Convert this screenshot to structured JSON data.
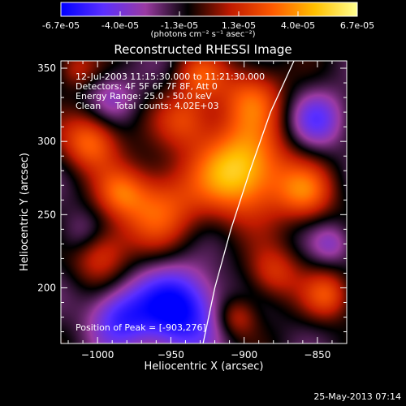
{
  "colorbar": {
    "tick_labels": [
      "-6.7e-05",
      "-4.0e-05",
      "-1.3e-05",
      "1.3e-05",
      "4.0e-05",
      "6.7e-05"
    ],
    "units_text": "(photons cm⁻² s⁻¹ asec⁻²)",
    "range": [
      -6.7e-05,
      6.7e-05
    ],
    "colors": [
      "#0000ff",
      "#5b2fff",
      "#9a3aa2",
      "#000000",
      "#c01a00",
      "#ff5a00",
      "#ffc000",
      "#ffff90"
    ]
  },
  "timestamp": "25-May-2013 07:14",
  "chart_data": {
    "type": "heatmap",
    "title": "Reconstructed RHESSI Image",
    "xlabel": "Heliocentric X (arcsec)",
    "ylabel": "Heliocentric Y (arcsec)",
    "xlim": [
      -1025,
      -830
    ],
    "ylim": [
      162,
      355
    ],
    "x_ticks": [
      -1000,
      -950,
      -900,
      -850
    ],
    "x_tick_labels": [
      "−1000",
      "−950",
      "−900",
      "−850"
    ],
    "y_ticks": [
      200,
      250,
      300,
      350
    ],
    "y_tick_labels": [
      "200",
      "250",
      "300",
      "350"
    ],
    "annotations": [
      "12-Jul-2003 11:15:30.000 to 11:21:30.000",
      "Detectors: 4F 5F 6F 7F 8F, Att 0",
      "Energy Range: 25.0 - 50.0 keV",
      "Clean     Total counts: 4.02E+03"
    ],
    "peak_label": "Position of Peak = [-903,276]",
    "peak": [
      -903,
      276
    ],
    "limb_curve": [
      [
        -928,
        162
      ],
      [
        -920,
        200
      ],
      [
        -909,
        240
      ],
      [
        -896,
        280
      ],
      [
        -882,
        320
      ],
      [
        -866,
        355
      ]
    ],
    "sources": [
      {
        "x": -902,
        "y": 280,
        "amp": 1.0,
        "sigma": 22
      },
      {
        "x": -1005,
        "y": 300,
        "amp": 0.65,
        "sigma": 14
      },
      {
        "x": -960,
        "y": 255,
        "amp": 0.6,
        "sigma": 20
      },
      {
        "x": -895,
        "y": 330,
        "amp": 0.55,
        "sigma": 16
      },
      {
        "x": -858,
        "y": 265,
        "amp": 0.55,
        "sigma": 14
      },
      {
        "x": -1000,
        "y": 225,
        "amp": 0.55,
        "sigma": 14
      },
      {
        "x": -940,
        "y": 315,
        "amp": 0.45,
        "sigma": 14
      },
      {
        "x": -985,
        "y": 265,
        "amp": 0.4,
        "sigma": 12
      },
      {
        "x": -880,
        "y": 210,
        "amp": 0.45,
        "sigma": 13
      },
      {
        "x": -843,
        "y": 195,
        "amp": 0.5,
        "sigma": 12
      },
      {
        "x": -930,
        "y": 345,
        "amp": 0.45,
        "sigma": 12
      },
      {
        "x": -1015,
        "y": 350,
        "amp": 0.35,
        "sigma": 10
      },
      {
        "x": -905,
        "y": 180,
        "amp": 0.4,
        "sigma": 10
      },
      {
        "x": -945,
        "y": 185,
        "amp": -0.85,
        "sigma": 20
      },
      {
        "x": -985,
        "y": 180,
        "amp": -0.55,
        "sigma": 15
      },
      {
        "x": -1010,
        "y": 235,
        "amp": -0.35,
        "sigma": 12
      },
      {
        "x": -850,
        "y": 315,
        "amp": -0.45,
        "sigma": 14
      },
      {
        "x": -990,
        "y": 330,
        "amp": -0.3,
        "sigma": 12
      },
      {
        "x": -840,
        "y": 230,
        "amp": -0.3,
        "sigma": 10
      }
    ]
  }
}
